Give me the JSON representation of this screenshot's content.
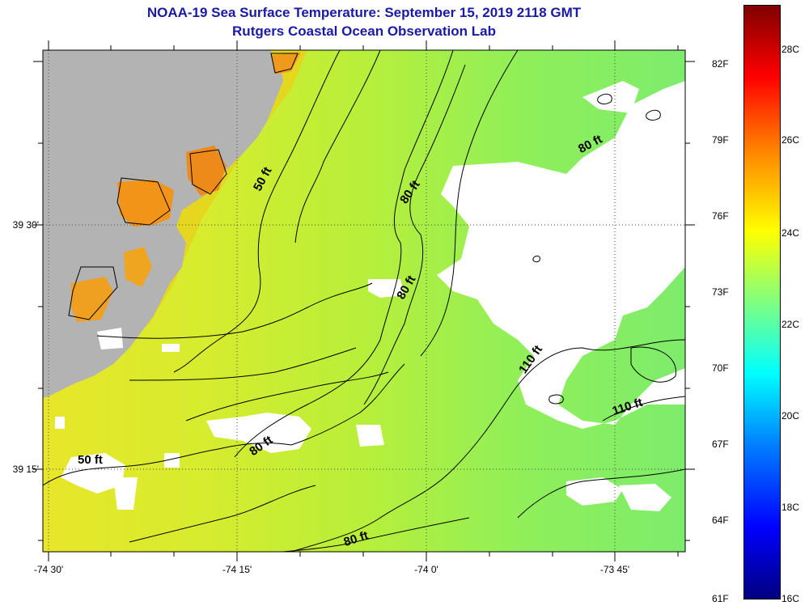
{
  "header": {
    "title": "NOAA-19 Sea Surface Temperature:  September 15, 2019 2118 GMT",
    "subtitle": "Rutgers Coastal Ocean Observation Lab"
  },
  "axes": {
    "lat_labels": [
      "39 30'",
      "39 15'"
    ],
    "lon_labels": [
      "-74 30'",
      "-74 15'",
      "-74 0'",
      "-73 45'"
    ]
  },
  "contours": [
    "50 ft",
    "50 ft",
    "80 ft",
    "80 ft",
    "80 ft",
    "80 ft",
    "80 ft",
    "110 ft",
    "110 ft"
  ],
  "colorbar": {
    "fahrenheit": [
      "82F",
      "79F",
      "76F",
      "73F",
      "70F",
      "67F",
      "64F",
      "61F"
    ],
    "celsius": [
      "28C",
      "26C",
      "24C",
      "22C",
      "20C",
      "18C",
      "16C"
    ]
  },
  "colors": {
    "land": "#b3b3b3",
    "cloud": "#ffffff",
    "title": "#1a1aa6"
  }
}
